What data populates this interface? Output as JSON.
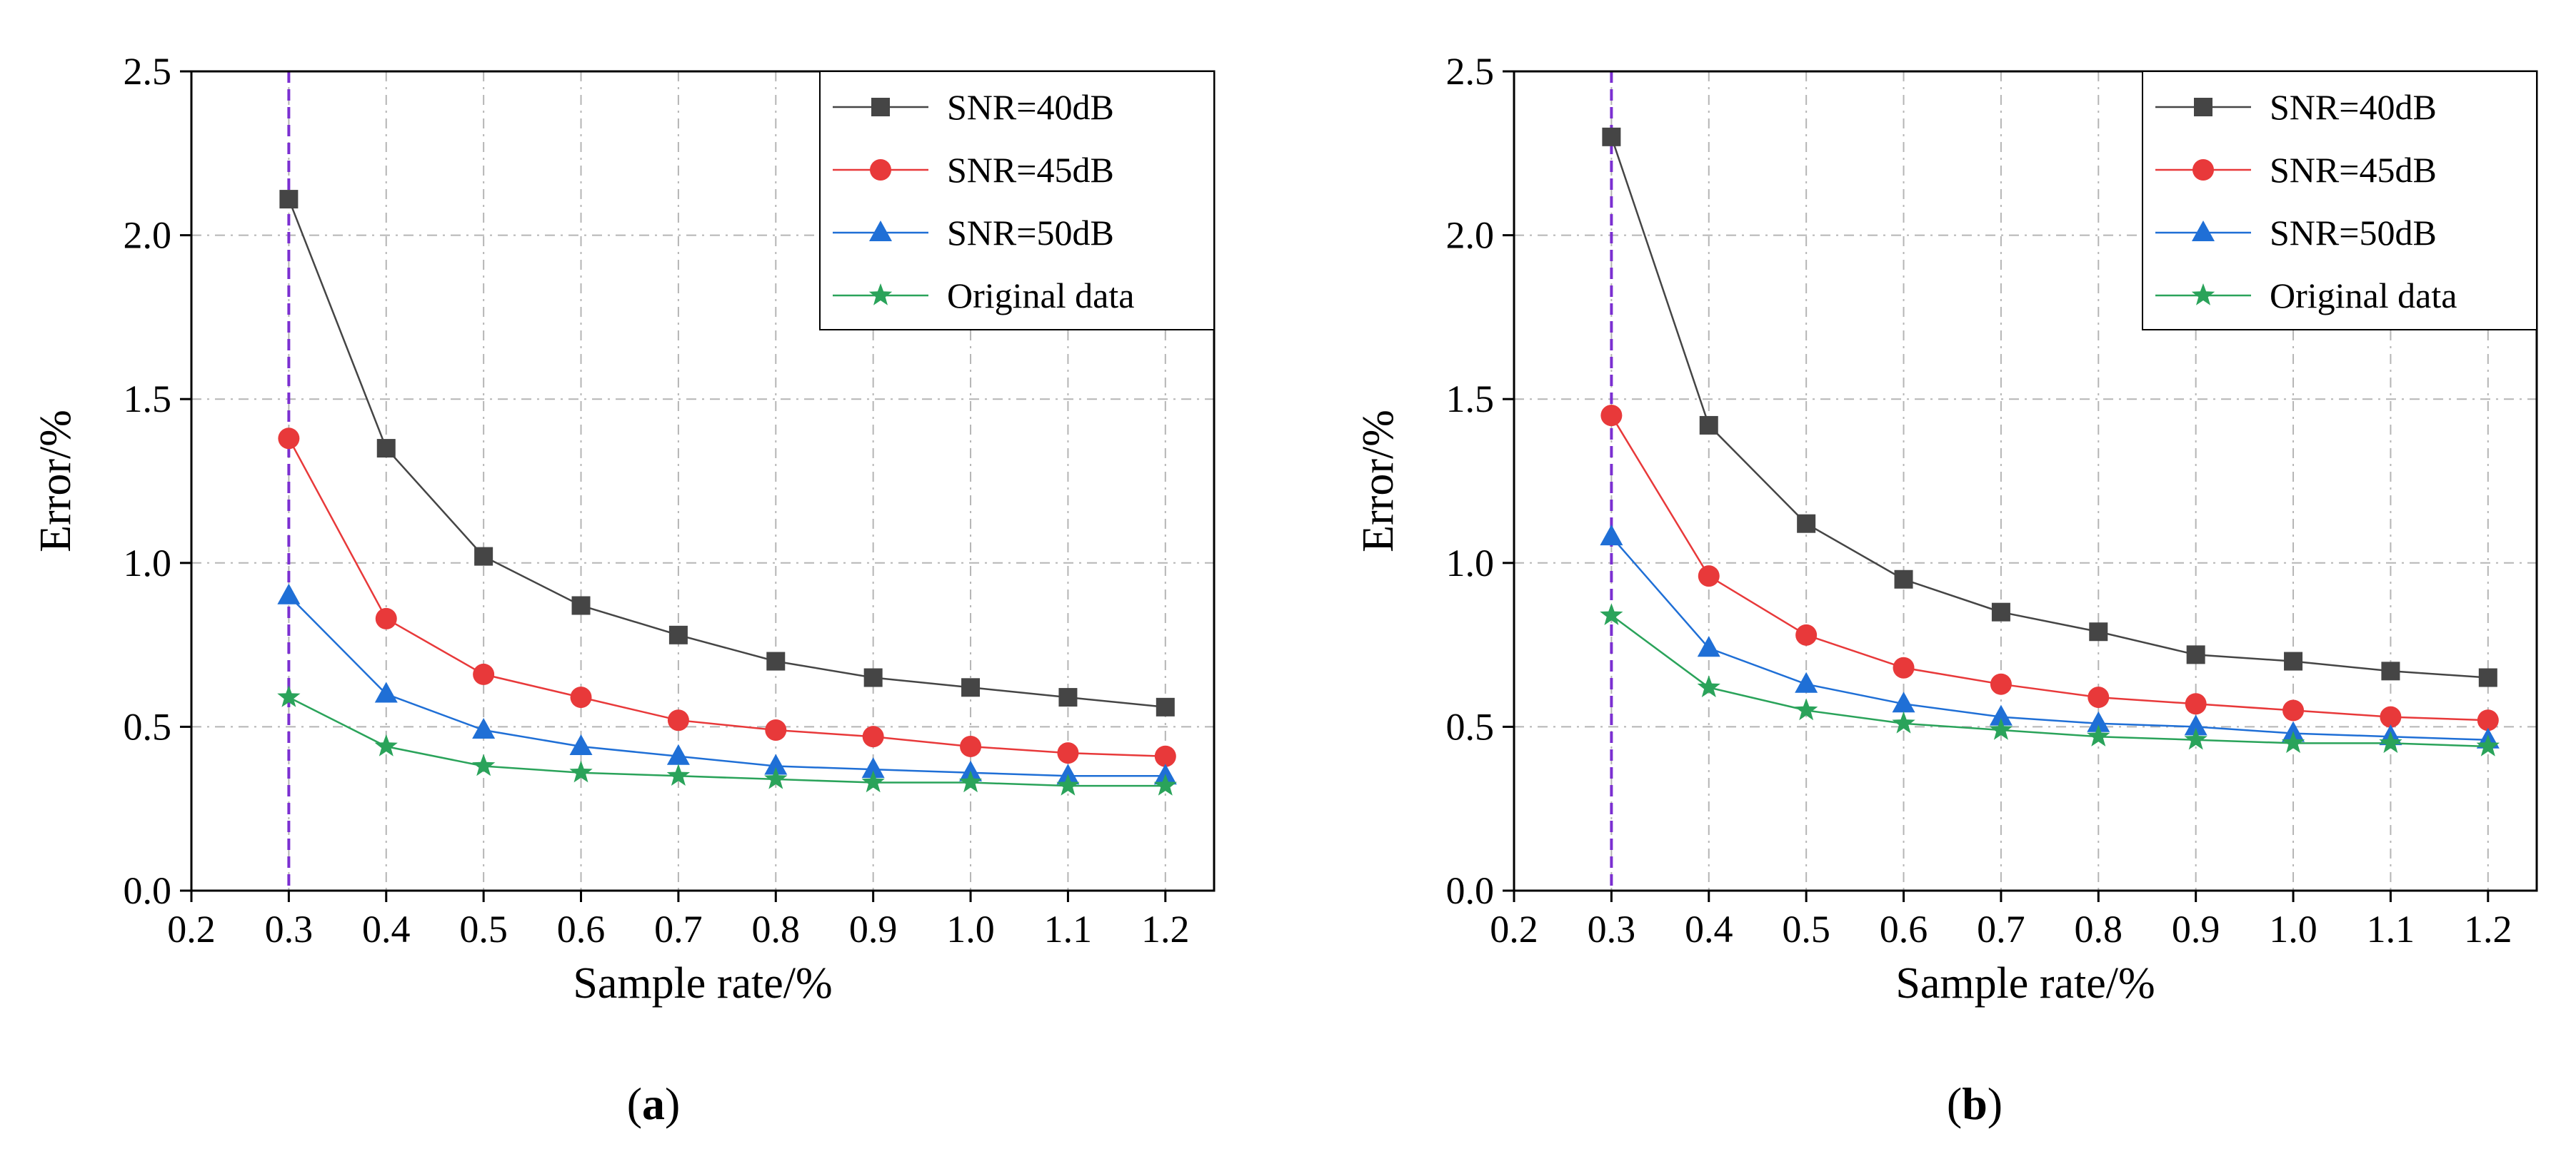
{
  "chart_data": [
    {
      "type": "line",
      "panel_label": "a",
      "xlabel": "Sample rate/%",
      "ylabel": "Error/%",
      "xlim": [
        0.2,
        1.25
      ],
      "ylim": [
        0.0,
        2.5
      ],
      "xticks": [
        "0.2",
        "0.3",
        "0.4",
        "0.5",
        "0.6",
        "0.7",
        "0.8",
        "0.9",
        "1.0",
        "1.1",
        "1.2"
      ],
      "yticks": [
        "0.0",
        "0.5",
        "1.0",
        "1.5",
        "2.0",
        "2.5"
      ],
      "grid": true,
      "vertical_reference_line": 0.3,
      "legend_position": "top-right",
      "x": [
        0.3,
        0.4,
        0.5,
        0.6,
        0.7,
        0.8,
        0.9,
        1.0,
        1.1,
        1.2
      ],
      "series": [
        {
          "name": "SNR=40dB",
          "values": [
            2.11,
            1.35,
            1.02,
            0.87,
            0.78,
            0.7,
            0.65,
            0.62,
            0.59,
            0.56
          ]
        },
        {
          "name": "SNR=45dB",
          "values": [
            1.38,
            0.83,
            0.66,
            0.59,
            0.52,
            0.49,
            0.47,
            0.44,
            0.42,
            0.41
          ]
        },
        {
          "name": "SNR=50dB",
          "values": [
            0.9,
            0.6,
            0.49,
            0.44,
            0.41,
            0.38,
            0.37,
            0.36,
            0.35,
            0.35
          ]
        },
        {
          "name": "Original data",
          "values": [
            0.59,
            0.44,
            0.38,
            0.36,
            0.35,
            0.34,
            0.33,
            0.33,
            0.32,
            0.32
          ]
        }
      ]
    },
    {
      "type": "line",
      "panel_label": "b",
      "xlabel": "Sample rate/%",
      "ylabel": "Error/%",
      "xlim": [
        0.2,
        1.25
      ],
      "ylim": [
        0.0,
        2.5
      ],
      "xticks": [
        "0.2",
        "0.3",
        "0.4",
        "0.5",
        "0.6",
        "0.7",
        "0.8",
        "0.9",
        "1.0",
        "1.1",
        "1.2"
      ],
      "yticks": [
        "0.0",
        "0.5",
        "1.0",
        "1.5",
        "2.0",
        "2.5"
      ],
      "grid": true,
      "vertical_reference_line": 0.3,
      "legend_position": "top-right",
      "x": [
        0.3,
        0.4,
        0.5,
        0.6,
        0.7,
        0.8,
        0.9,
        1.0,
        1.1,
        1.2
      ],
      "series": [
        {
          "name": "SNR=40dB",
          "values": [
            2.3,
            1.42,
            1.12,
            0.95,
            0.85,
            0.79,
            0.72,
            0.7,
            0.67,
            0.65
          ]
        },
        {
          "name": "SNR=45dB",
          "values": [
            1.45,
            0.96,
            0.78,
            0.68,
            0.63,
            0.59,
            0.57,
            0.55,
            0.53,
            0.52
          ]
        },
        {
          "name": "SNR=50dB",
          "values": [
            1.08,
            0.74,
            0.63,
            0.57,
            0.53,
            0.51,
            0.5,
            0.48,
            0.47,
            0.46
          ]
        },
        {
          "name": "Original data",
          "values": [
            0.84,
            0.62,
            0.55,
            0.51,
            0.49,
            0.47,
            0.46,
            0.45,
            0.45,
            0.44
          ]
        }
      ]
    }
  ],
  "styles": {
    "series_colors": [
      "#454545",
      "#e8393a",
      "#1f6fd6",
      "#2aa35a"
    ],
    "marker_shapes": [
      "square",
      "circle",
      "triangle",
      "star"
    ],
    "grid_color": "#b5b5b5",
    "reference_line_color": "#7b2fd1",
    "axis_color": "#000000"
  }
}
